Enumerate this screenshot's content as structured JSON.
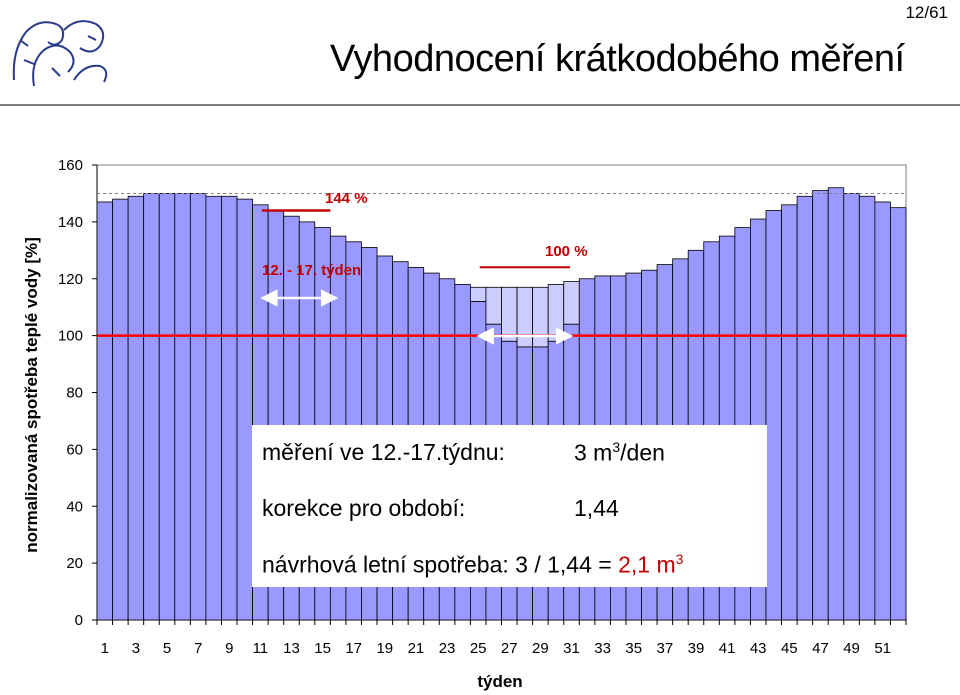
{
  "header": {
    "slide_number": "12/61",
    "title": "Vyhodnocení krátkodobého měření"
  },
  "chart_data": {
    "type": "bar",
    "ylabel": "normalizovaná spotřeba teplé vody [%]",
    "xlabel": "týden",
    "ylim": [
      0,
      160
    ],
    "yticks": [
      0,
      20,
      40,
      60,
      80,
      100,
      120,
      140,
      160
    ],
    "x": [
      1,
      2,
      3,
      4,
      5,
      6,
      7,
      8,
      9,
      10,
      11,
      12,
      13,
      14,
      15,
      16,
      17,
      18,
      19,
      20,
      21,
      22,
      23,
      24,
      25,
      26,
      27,
      28,
      29,
      30,
      31,
      32,
      33,
      34,
      35,
      36,
      37,
      38,
      39,
      40,
      41,
      42,
      43,
      44,
      45,
      46,
      47,
      48,
      49,
      50,
      51,
      52
    ],
    "xtick_labels": [
      "1",
      "3",
      "5",
      "7",
      "9",
      "11",
      "13",
      "15",
      "17",
      "19",
      "21",
      "23",
      "25",
      "27",
      "29",
      "31",
      "33",
      "35",
      "37",
      "39",
      "41",
      "43",
      "45",
      "47",
      "49",
      "51"
    ],
    "values": [
      147,
      148,
      149,
      150,
      150,
      150,
      150,
      149,
      149,
      148,
      146,
      144,
      142,
      140,
      138,
      135,
      133,
      131,
      128,
      126,
      124,
      122,
      120,
      118,
      112,
      104,
      98,
      96,
      96,
      98,
      104,
      120,
      121,
      121,
      122,
      123,
      125,
      127,
      130,
      133,
      135,
      138,
      141,
      144,
      146,
      149,
      151,
      152,
      150,
      149,
      147,
      145
    ],
    "full_values": [
      147,
      148,
      149,
      150,
      150,
      150,
      150,
      149,
      149,
      148,
      146,
      144,
      142,
      140,
      138,
      135,
      133,
      131,
      128,
      126,
      124,
      122,
      120,
      118,
      117,
      117,
      117,
      117,
      117,
      118,
      119,
      120,
      121,
      121,
      122,
      123,
      125,
      127,
      130,
      133,
      135,
      138,
      141,
      144,
      146,
      149,
      151,
      152,
      150,
      149,
      147,
      145
    ],
    "reference_line": 100,
    "annotations": {
      "peak_label": "144 %",
      "base_label": "100 %",
      "period_label": "12. - 17. týden"
    },
    "colors": {
      "bar": "#9999ff",
      "dip_fill": "#ccccff",
      "ref_line": "#ff0000",
      "marker": "#c00000"
    }
  },
  "info_box": {
    "line1_label": "měření ve 12.-17.týdnu:",
    "line1_value": "3 m",
    "line1_value_sup": "3",
    "line1_value_unit": "/den",
    "line2_label": "korekce pro období:",
    "line2_value": "1,44",
    "line3_label": "návrhová letní spotřeba: 3 / 1,44 = ",
    "line3_result": "2,1 m",
    "line3_result_sup": "3"
  }
}
